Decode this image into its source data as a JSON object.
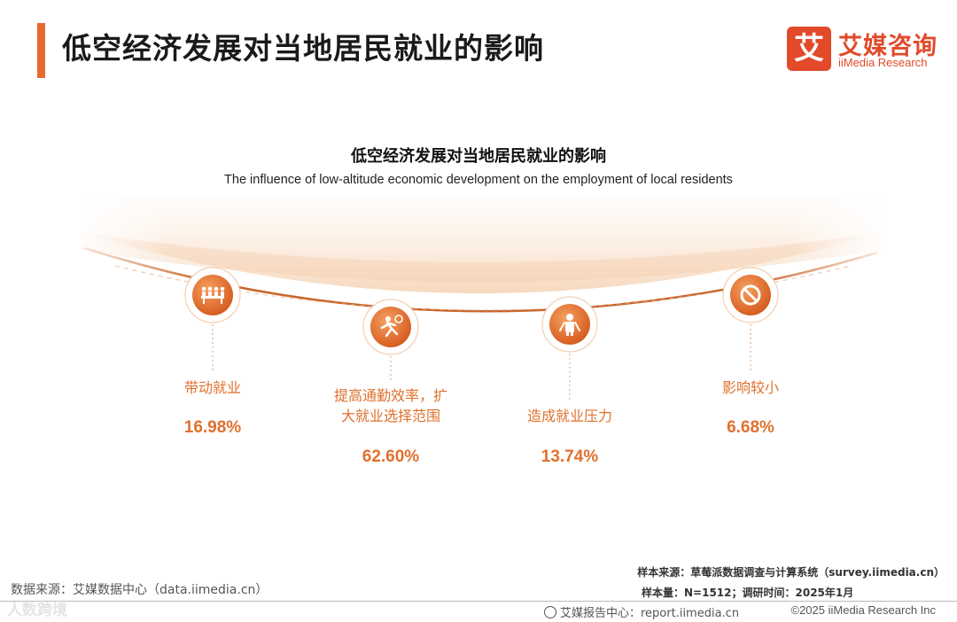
{
  "header": {
    "title": "低空经济发展对当地居民就业的影响",
    "logo_mark": "艾",
    "logo_cn": "艾媒咨询",
    "logo_en": "iiMedia Research",
    "accent_color": "#e8692d"
  },
  "chart_data": {
    "type": "bar",
    "title": "低空经济发展对当地居民就业的影响",
    "subtitle": "The influence of low-altitude economic development on the employment of local residents",
    "categories": [
      "带动就业",
      "提高通勤效率，扩大就业选择范围",
      "造成就业压力",
      "影响较小"
    ],
    "category_lines": [
      [
        "带动就业"
      ],
      [
        "提高通勤效率，扩",
        "大就业选择范围"
      ],
      [
        "造成就业压力"
      ],
      [
        "影响较小"
      ]
    ],
    "values": [
      16.98,
      62.6,
      13.74,
      6.68
    ],
    "value_labels": [
      "16.98%",
      "62.60%",
      "13.74%",
      "6.68%"
    ],
    "icons": [
      "people-meeting-icon",
      "running-commuter-icon",
      "stressed-worker-icon",
      "no-sign-icon"
    ],
    "unit": "%",
    "colors": {
      "accent": "#e0702d",
      "circle_light": "#f39a54",
      "circle_dark": "#d4581c"
    }
  },
  "footer": {
    "data_source": "数据来源：艾媒数据中心（data.iimedia.cn）",
    "sample_source": "样本来源：草莓派数据调查与计算系统（survey.iimedia.cn）",
    "sample_info": "样本量：N=1512；调研时间：2025年1月",
    "report_center": "艾媒报告中心：report.iimedia.cn",
    "copyright": "©2025  iiMedia Research Inc",
    "watermark": "人数跨境"
  }
}
